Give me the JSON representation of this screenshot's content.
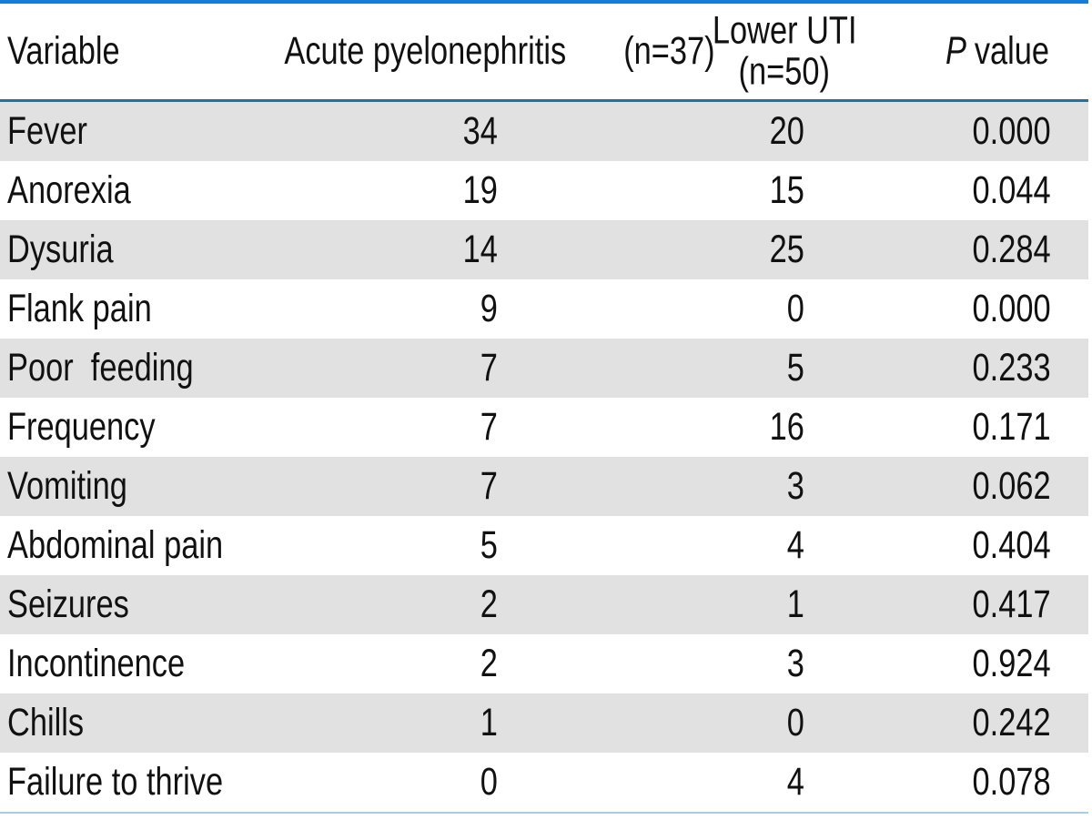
{
  "table": {
    "header": {
      "variable": "Variable",
      "col2_line1": "Acute pyelonephritis",
      "col2_line2": "(n=37)",
      "col3_line1": "Lower UTI",
      "col3_line2": "(n=50)",
      "p_symbol": "P",
      "p_rest": "value"
    },
    "rows": [
      {
        "variable": "Fever",
        "apn": "34",
        "uti": "20",
        "p": "0.000"
      },
      {
        "variable": "Anorexia",
        "apn": "19",
        "uti": "15",
        "p": "0.044"
      },
      {
        "variable": "Dysuria",
        "apn": "14",
        "uti": "25",
        "p": "0.284"
      },
      {
        "variable": "Flank pain",
        "apn": "9",
        "uti": "0",
        "p": "0.000"
      },
      {
        "variable": "Poor  feeding",
        "apn": "7",
        "uti": "5",
        "p": "0.233"
      },
      {
        "variable": "Frequency",
        "apn": "7",
        "uti": "16",
        "p": "0.171"
      },
      {
        "variable": "Vomiting",
        "apn": "7",
        "uti": "3",
        "p": "0.062"
      },
      {
        "variable": "Abdominal pain",
        "apn": "5",
        "uti": "4",
        "p": "0.404"
      },
      {
        "variable": "Seizures",
        "apn": "2",
        "uti": "1",
        "p": "0.417"
      },
      {
        "variable": "Incontinence",
        "apn": "2",
        "uti": "3",
        "p": "0.924"
      },
      {
        "variable": "Chills",
        "apn": "1",
        "uti": "0",
        "p": "0.242"
      },
      {
        "variable": "Failure to thrive",
        "apn": "0",
        "uti": "4",
        "p": "0.078"
      }
    ]
  },
  "colors": {
    "top_border": "#1a7bd5",
    "header_rule": "#1e72ab",
    "bottom_rule": "#a9cde5",
    "row_shade": "#e1e1e1",
    "text": "#111111"
  }
}
